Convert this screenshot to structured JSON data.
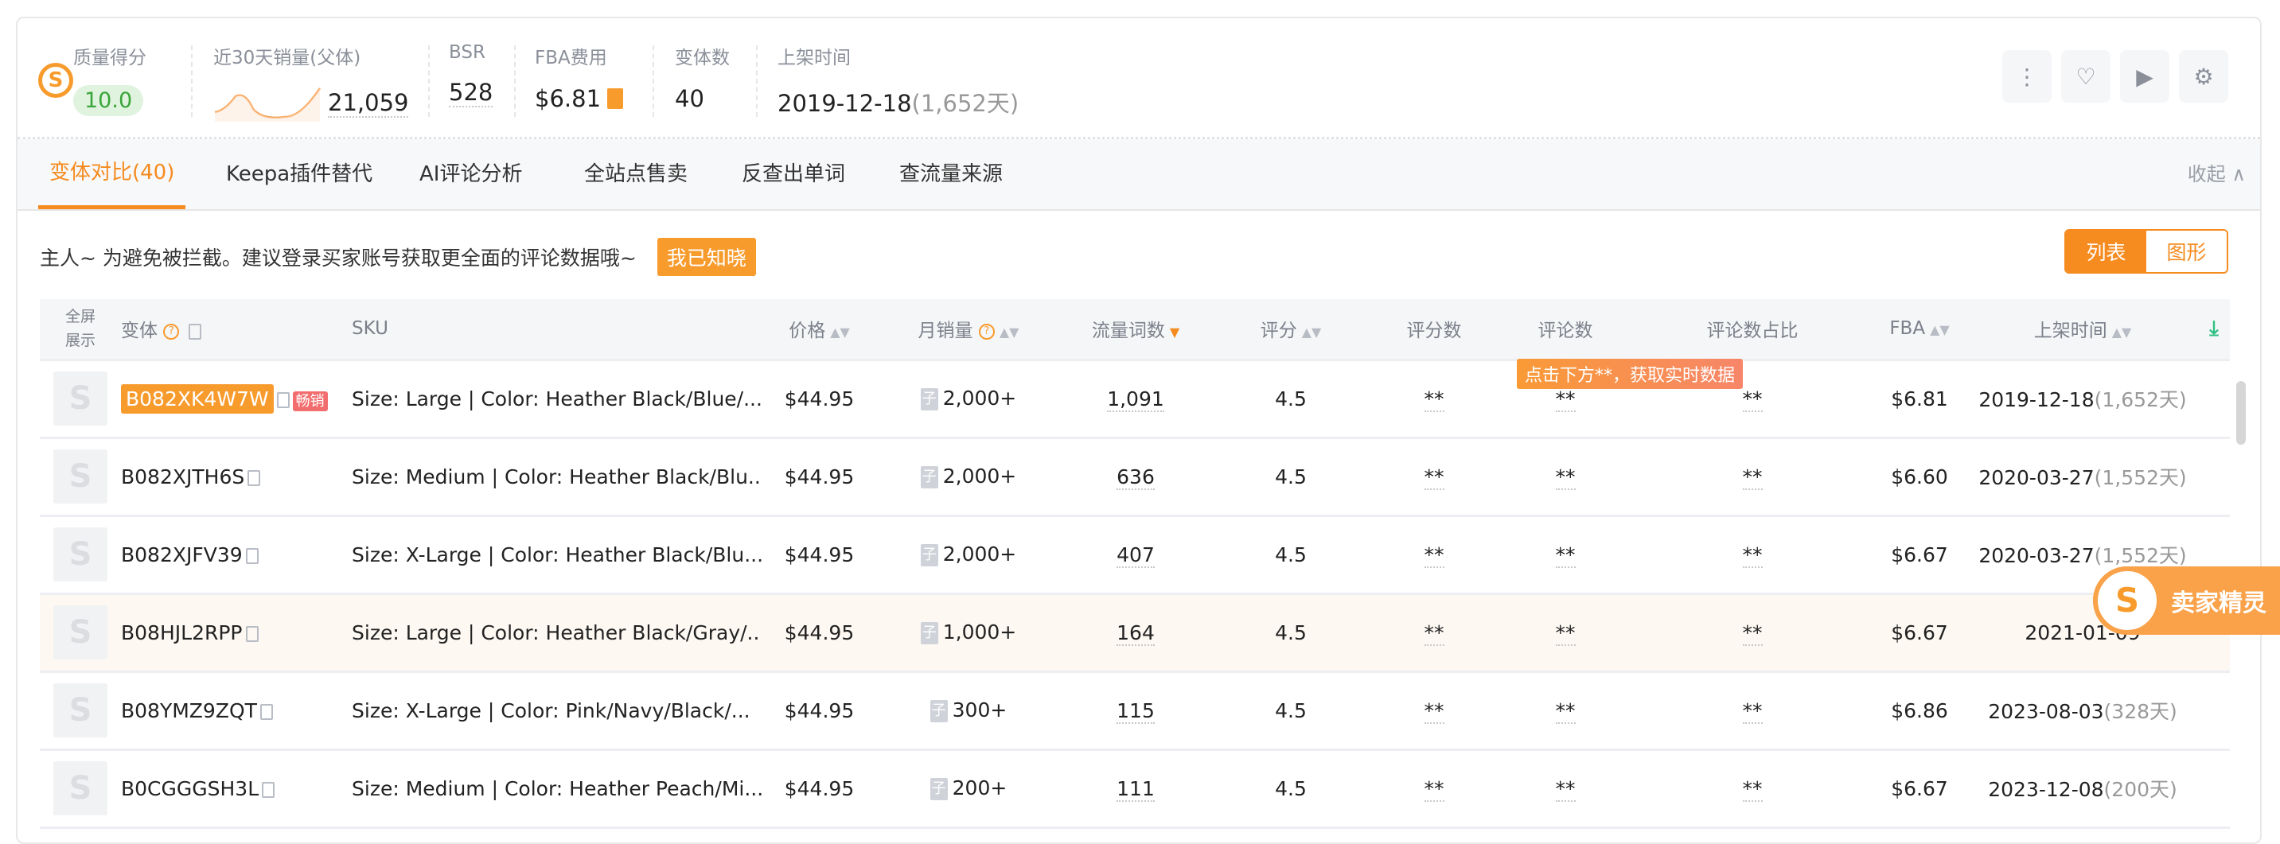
{
  "header": {
    "stats": [
      {
        "label": "质量得分",
        "value": "10.0"
      },
      {
        "label": "近30天销量(父体)",
        "value": "21,059"
      },
      {
        "label": "BSR",
        "value": "528"
      },
      {
        "label": "FBA费用",
        "value": "$6.81"
      },
      {
        "label": "变体数",
        "value": "40"
      },
      {
        "label": "上架时间",
        "value": "2019-12-18",
        "days": "(1,652天)"
      }
    ],
    "icons": [
      "more-icon",
      "heart-icon",
      "video-icon",
      "gear-icon"
    ],
    "accent": "#f68b1f"
  },
  "tabs": [
    {
      "label": "变体对比(40)",
      "active": true
    },
    {
      "label": "Keepa插件替代"
    },
    {
      "label": "AI评论分析"
    },
    {
      "label": "全站点售卖"
    },
    {
      "label": "反查出单词"
    },
    {
      "label": "查流量来源"
    }
  ],
  "collapse_label": "收起",
  "notice": {
    "text": "主人~ 为避免被拦截。建议登录买家账号获取更全面的评论数据哦~",
    "button": "我已知晓"
  },
  "view_toggle": {
    "list": "列表",
    "chart": "图形",
    "selected": "列表"
  },
  "table": {
    "headers": {
      "fullscreen": "全屏展示",
      "variant": "变体",
      "sku": "SKU",
      "price": "价格",
      "monthly_sales": "月销量",
      "traffic_words": "流量词数",
      "rating": "评分",
      "rating_count": "评分数",
      "review_count": "评论数",
      "review_ratio": "评论数占比",
      "fba": "FBA",
      "listed": "上架时间"
    },
    "tooltip": "点击下方**，获取实时数据",
    "sub_badge": "子",
    "hot_badge": "畅销",
    "rows": [
      {
        "asin": "B082XK4W7W",
        "sku": "Size: Large | Color: Heather Black/Blue/...",
        "price": "$44.95",
        "sales": "2,000+",
        "words": "1,091",
        "rating": "4.5",
        "rating_count": "**",
        "review_count": "**",
        "review_ratio": "**",
        "fba": "$6.81",
        "date": "2019-12-18",
        "days": "(1,652天)"
      },
      {
        "asin": "B082XJTH6S",
        "sku": "Size: Medium | Color: Heather Black/Blu...",
        "price": "$44.95",
        "sales": "2,000+",
        "words": "636",
        "rating": "4.5",
        "rating_count": "**",
        "review_count": "**",
        "review_ratio": "**",
        "fba": "$6.60",
        "date": "2020-03-27",
        "days": "(1,552天)"
      },
      {
        "asin": "B082XJFV39",
        "sku": "Size: X-Large | Color: Heather Black/Blu...",
        "price": "$44.95",
        "sales": "2,000+",
        "words": "407",
        "rating": "4.5",
        "rating_count": "**",
        "review_count": "**",
        "review_ratio": "**",
        "fba": "$6.67",
        "date": "2020-03-27",
        "days": "(1,552天)"
      },
      {
        "asin": "B08HJL2RPP",
        "sku": "Size: Large | Color: Heather Black/Gray/...",
        "price": "$44.95",
        "sales": "1,000+",
        "words": "164",
        "rating": "4.5",
        "rating_count": "**",
        "review_count": "**",
        "review_ratio": "**",
        "fba": "$6.67",
        "date": "2021-01-09",
        "days": ""
      },
      {
        "asin": "B08YMZ9ZQT",
        "sku": "Size: X-Large | Color: Pink/Navy/Black/...",
        "price": "$44.95",
        "sales": "300+",
        "words": "115",
        "rating": "4.5",
        "rating_count": "**",
        "review_count": "**",
        "review_ratio": "**",
        "fba": "$6.86",
        "date": "2023-08-03",
        "days": "(328天)"
      },
      {
        "asin": "B0CGGGSH3L",
        "sku": "Size: Medium | Color: Heather Peach/Mi...",
        "price": "$44.95",
        "sales": "200+",
        "words": "111",
        "rating": "4.5",
        "rating_count": "**",
        "review_count": "**",
        "review_ratio": "**",
        "fba": "$6.67",
        "date": "2023-12-08",
        "days": "(200天)"
      }
    ]
  },
  "floating_widget": {
    "label": "卖家精灵"
  }
}
